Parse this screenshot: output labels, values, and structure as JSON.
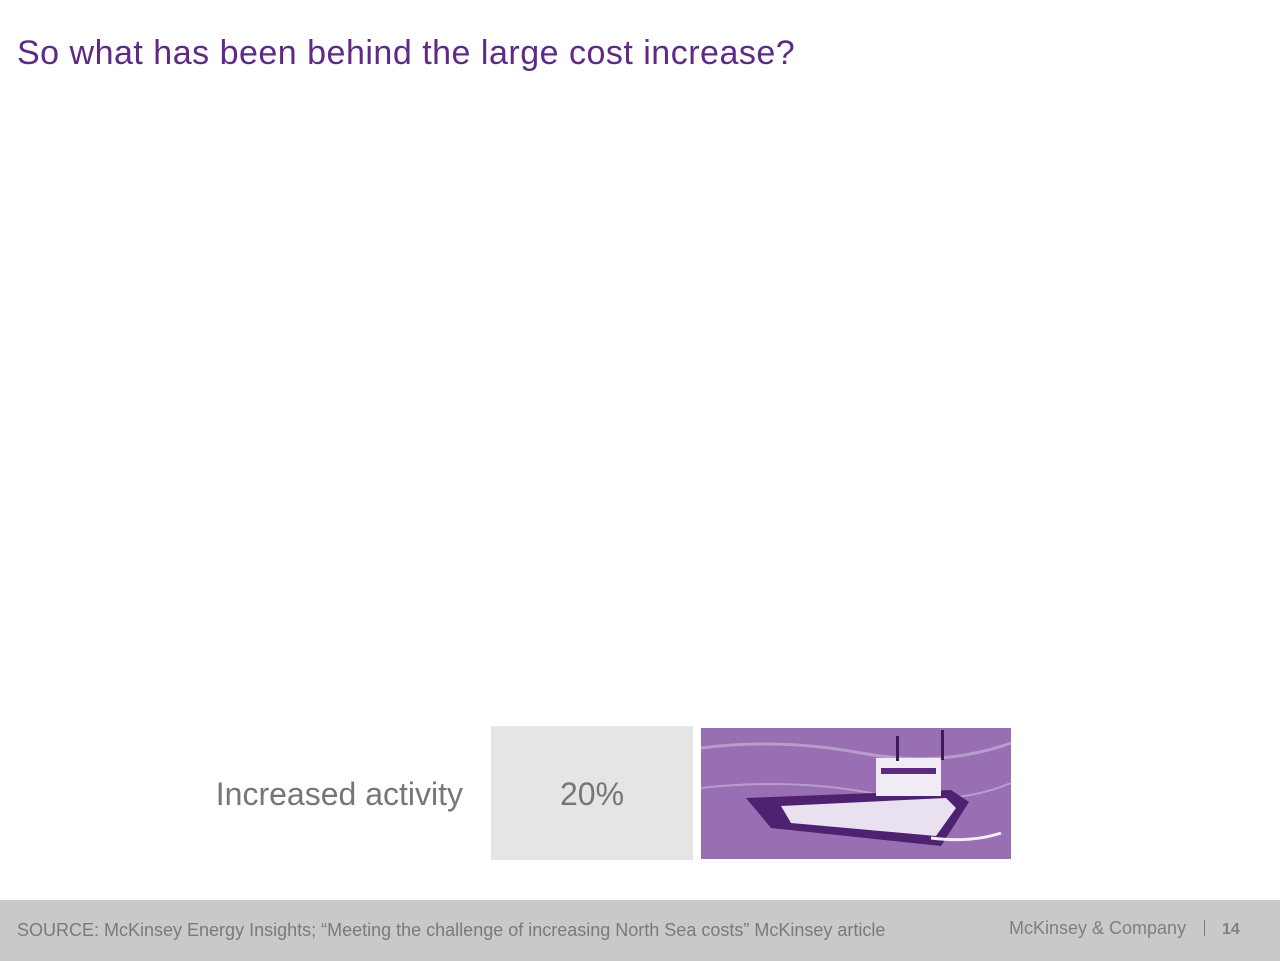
{
  "header": {
    "title": "So what has been behind the large cost increase?"
  },
  "rows": [
    {
      "label": "Increased activity",
      "value": "20%"
    }
  ],
  "footer": {
    "source": "SOURCE: McKinsey Energy Insights; “Meeting the challenge of increasing North Sea costs” McKinsey article",
    "company": "McKinsey & Company",
    "page": "14"
  }
}
